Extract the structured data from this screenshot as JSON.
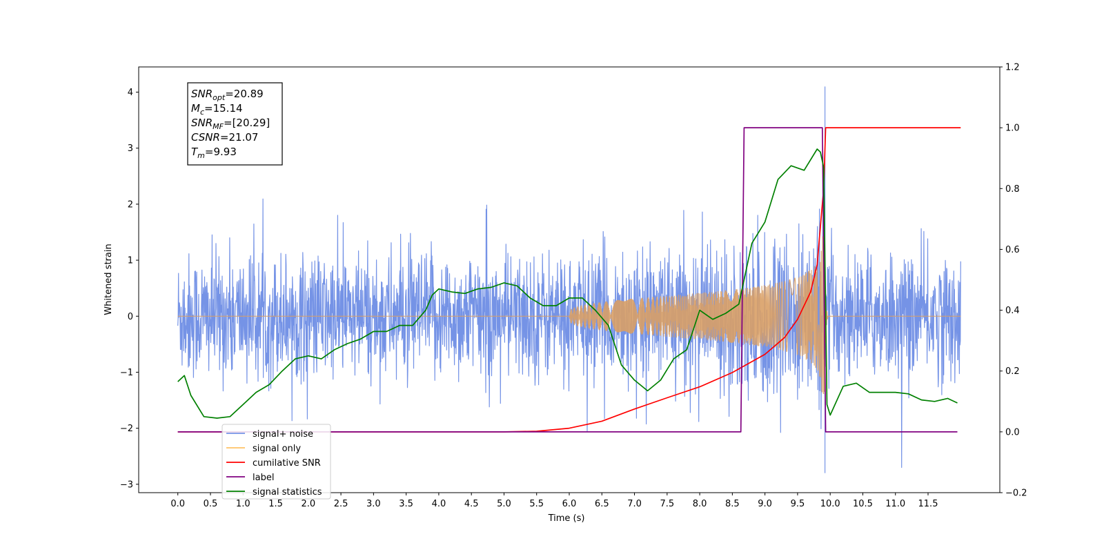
{
  "chart_data": {
    "type": "line",
    "title": "",
    "xlabel": "Time (s)",
    "ylabel": "Whitened strain",
    "xlim": [
      -0.6,
      12.6
    ],
    "ylim": [
      -3.15,
      4.45
    ],
    "y2lim": [
      -0.2,
      1.2
    ],
    "x_ticks": [
      0.0,
      0.5,
      1.0,
      1.5,
      2.0,
      2.5,
      3.0,
      3.5,
      4.0,
      4.5,
      5.0,
      5.5,
      6.0,
      6.5,
      7.0,
      7.5,
      8.0,
      8.5,
      9.0,
      9.5,
      10.0,
      10.5,
      11.0,
      11.5
    ],
    "x_tick_labels": [
      "0.0",
      "0.5",
      "1.0",
      "1.5",
      "2.0",
      "2.5",
      "3.0",
      "3.5",
      "4.0",
      "4.5",
      "5.0",
      "5.5",
      "6.0",
      "6.5",
      "7.0",
      "7.5",
      "8.0",
      "8.5",
      "9.0",
      "9.5",
      "10.0",
      "10.5",
      "11.0",
      "11.5"
    ],
    "y_ticks": [
      -3,
      -2,
      -1,
      0,
      1,
      2,
      3,
      4
    ],
    "y_tick_labels": [
      "−3",
      "−2",
      "−1",
      "0",
      "1",
      "2",
      "3",
      "4"
    ],
    "y2_ticks": [
      -0.2,
      0.0,
      0.2,
      0.4,
      0.6,
      0.8,
      1.0,
      1.2
    ],
    "y2_tick_labels": [
      "−0.2",
      "0.0",
      "0.2",
      "0.4",
      "0.6",
      "0.8",
      "1.0",
      "1.2"
    ],
    "grid": false,
    "legend": {
      "placement": "lower-left",
      "entries": [
        {
          "label": "signal+ noise",
          "color": "#7593e6"
        },
        {
          "label": "signal only",
          "color": "#ffc266"
        },
        {
          "label": "cumilative SNR",
          "color": "#ff0000"
        },
        {
          "label": "label",
          "color": "#800080"
        },
        {
          "label": "signal statistics",
          "color": "#008000"
        }
      ]
    },
    "series": [
      {
        "name": "signal+ noise",
        "axis": "left",
        "color": "#7593e6",
        "description_values": {
          "x_start": 0.0,
          "x_end": 12.0,
          "typical_amplitude": 1.3,
          "max": 4.1,
          "min": -2.8
        }
      },
      {
        "name": "signal only",
        "axis": "left",
        "color": "#d9a066",
        "chirp": {
          "start": 6.0,
          "merger": 9.9,
          "peak_amplitude": 2.2
        }
      },
      {
        "name": "cumilative SNR",
        "axis": "right",
        "color": "#ff0000",
        "x": [
          0.0,
          5.0,
          5.5,
          6.0,
          6.5,
          7.0,
          7.5,
          8.0,
          8.5,
          9.0,
          9.3,
          9.5,
          9.7,
          9.8,
          9.9,
          9.93,
          10.0,
          12.0
        ],
        "y": [
          0.0,
          0.0,
          0.002,
          0.012,
          0.035,
          0.075,
          0.112,
          0.148,
          0.195,
          0.255,
          0.31,
          0.37,
          0.46,
          0.55,
          0.8,
          1.0,
          1.0,
          1.0
        ]
      },
      {
        "name": "label",
        "axis": "right",
        "color": "#800080",
        "x": [
          0.0,
          8.63,
          8.68,
          9.88,
          9.93,
          11.95
        ],
        "y": [
          0.0,
          0.0,
          1.0,
          1.0,
          0.0,
          0.0
        ]
      },
      {
        "name": "signal statistics",
        "axis": "right",
        "color": "#008000",
        "x": [
          0.0,
          0.1,
          0.2,
          0.4,
          0.6,
          0.8,
          1.0,
          1.2,
          1.4,
          1.6,
          1.8,
          2.0,
          2.2,
          2.4,
          2.6,
          2.8,
          3.0,
          3.2,
          3.4,
          3.6,
          3.8,
          3.9,
          4.0,
          4.2,
          4.4,
          4.6,
          4.8,
          5.0,
          5.2,
          5.4,
          5.6,
          5.8,
          6.0,
          6.2,
          6.4,
          6.6,
          6.8,
          7.0,
          7.2,
          7.4,
          7.6,
          7.8,
          8.0,
          8.2,
          8.4,
          8.6,
          8.8,
          9.0,
          9.2,
          9.4,
          9.6,
          9.8,
          9.85,
          9.9,
          9.95,
          10.0,
          10.2,
          10.4,
          10.6,
          10.8,
          11.0,
          11.2,
          11.4,
          11.6,
          11.8,
          11.95
        ],
        "y": [
          0.165,
          0.185,
          0.12,
          0.05,
          0.045,
          0.05,
          0.09,
          0.13,
          0.155,
          0.2,
          0.24,
          0.25,
          0.24,
          0.27,
          0.29,
          0.305,
          0.33,
          0.33,
          0.35,
          0.35,
          0.4,
          0.45,
          0.47,
          0.46,
          0.455,
          0.47,
          0.475,
          0.49,
          0.48,
          0.44,
          0.415,
          0.415,
          0.44,
          0.44,
          0.4,
          0.35,
          0.22,
          0.17,
          0.135,
          0.17,
          0.24,
          0.27,
          0.4,
          0.37,
          0.39,
          0.42,
          0.62,
          0.69,
          0.83,
          0.875,
          0.86,
          0.93,
          0.92,
          0.87,
          0.09,
          0.055,
          0.15,
          0.16,
          0.13,
          0.13,
          0.13,
          0.125,
          0.105,
          0.1,
          0.11,
          0.095
        ]
      }
    ],
    "annotation": [
      {
        "base": "SNR",
        "sub": "opt",
        "value": "=20.89"
      },
      {
        "base": "M",
        "sub": "c",
        "value": "=15.14"
      },
      {
        "base": "SNR",
        "sub": "MF",
        "value": "=[20.29]"
      },
      {
        "base": "CSNR",
        "sub": "",
        "value": "=21.07"
      },
      {
        "base": "T",
        "sub": "m",
        "value": "=9.93"
      }
    ]
  }
}
